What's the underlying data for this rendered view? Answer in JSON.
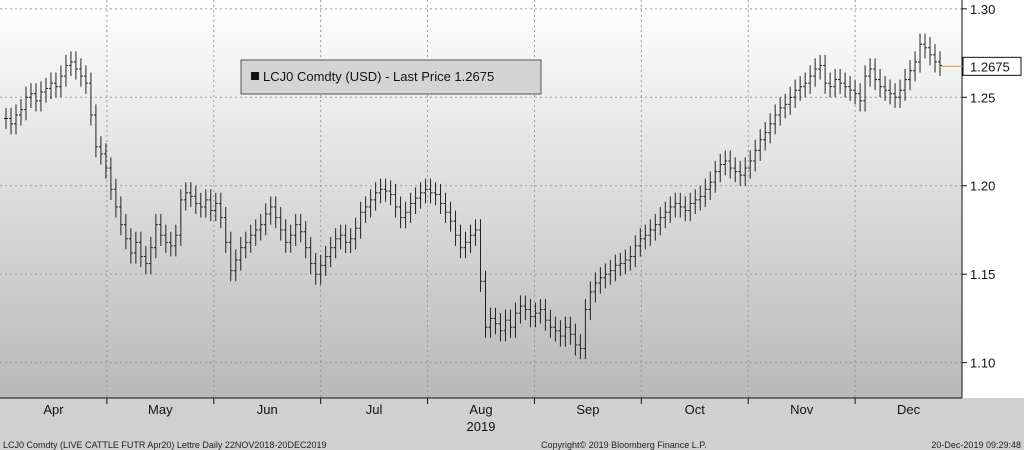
{
  "chart_data": {
    "type": "ohlc",
    "legend": "LCJ0 Comdty (USD) - Last Price 1.2675",
    "last_price_label": "1.2675",
    "last_price": 1.2675,
    "ylim": [
      1.08,
      1.305
    ],
    "yticks": [
      1.1,
      1.15,
      1.2,
      1.25,
      1.3
    ],
    "ytick_labels": [
      "1.10",
      "1.15",
      "1.20",
      "1.25",
      "1.30"
    ],
    "months": [
      "Apr",
      "May",
      "Jun",
      "Jul",
      "Aug",
      "Sep",
      "Oct",
      "Nov",
      "Dec"
    ],
    "year_label": "2019",
    "grid": true,
    "colors": {
      "background_top": "#ffffff",
      "background_bottom": "#b9b9b9",
      "bars": "#222222",
      "last_price_line": "#e8a23a"
    },
    "series": [
      {
        "values": [
          1.238,
          1.235,
          1.24,
          1.243,
          1.25,
          1.252,
          1.248,
          1.253,
          1.255,
          1.258,
          1.256,
          1.262,
          1.268,
          1.27,
          1.266,
          1.262,
          1.258,
          1.24,
          1.222,
          1.218,
          1.21,
          1.198,
          1.188,
          1.178,
          1.17,
          1.162,
          1.168,
          1.16,
          1.156,
          1.165,
          1.178,
          1.172,
          1.168,
          1.166,
          1.172,
          1.192,
          1.196,
          1.194,
          1.19,
          1.188,
          1.192,
          1.186,
          1.19,
          1.182,
          1.168,
          1.152,
          1.158,
          1.165,
          1.168,
          1.172,
          1.175,
          1.178,
          1.184,
          1.188,
          1.182,
          1.175,
          1.168,
          1.172,
          1.178,
          1.174,
          1.165,
          1.156,
          1.15,
          1.155,
          1.16,
          1.165,
          1.17,
          1.172,
          1.168,
          1.17,
          1.176,
          1.185,
          1.188,
          1.192,
          1.196,
          1.198,
          1.197,
          1.195,
          1.188,
          1.182,
          1.185,
          1.19,
          1.193,
          1.196,
          1.198,
          1.196,
          1.195,
          1.19,
          1.185,
          1.18,
          1.172,
          1.165,
          1.168,
          1.172,
          1.175,
          1.146,
          1.12,
          1.125,
          1.122,
          1.118,
          1.124,
          1.12,
          1.128,
          1.132,
          1.13,
          1.126,
          1.128,
          1.13,
          1.124,
          1.12,
          1.118,
          1.115,
          1.12,
          1.116,
          1.11,
          1.108,
          1.13,
          1.14,
          1.145,
          1.148,
          1.15,
          1.152,
          1.155,
          1.156,
          1.158,
          1.16,
          1.166,
          1.17,
          1.172,
          1.175,
          1.178,
          1.182,
          1.185,
          1.188,
          1.19,
          1.188,
          1.186,
          1.19,
          1.192,
          1.194,
          1.198,
          1.202,
          1.208,
          1.212,
          1.214,
          1.21,
          1.208,
          1.206,
          1.21,
          1.214,
          1.22,
          1.226,
          1.23,
          1.235,
          1.24,
          1.244,
          1.246,
          1.25,
          1.254,
          1.256,
          1.258,
          1.262,
          1.266,
          1.268,
          1.258,
          1.256,
          1.26,
          1.258,
          1.256,
          1.254,
          1.252,
          1.248,
          1.262,
          1.266,
          1.26,
          1.256,
          1.254,
          1.252,
          1.25,
          1.254,
          1.26,
          1.265,
          1.27,
          1.28,
          1.278,
          1.274,
          1.27,
          1.268
        ]
      }
    ]
  },
  "footer": {
    "left": "LCJ0 Comdty (LIVE CATTLE FUTR  Apr20) Lettre  Daily 22NOV2018-20DEC2019",
    "center": "Copyright© 2019 Bloomberg Finance L.P.",
    "right": "20-Dec-2019 09:29:48"
  }
}
